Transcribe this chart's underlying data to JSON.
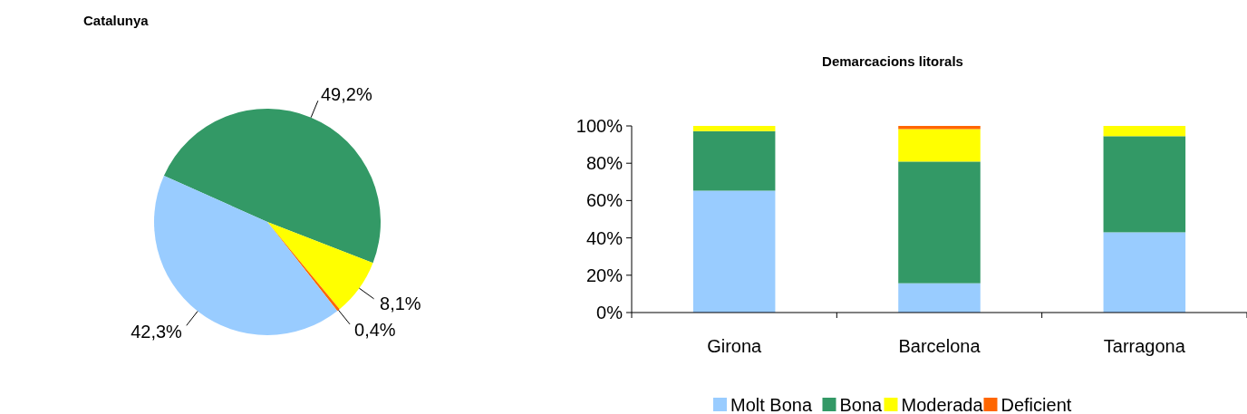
{
  "chart_data": [
    {
      "type": "pie",
      "title": "Catalunya",
      "values": [
        49.2,
        8.1,
        0.4,
        42.3
      ],
      "colors": [
        "#339966",
        "#ffff00",
        "#ff6600",
        "#99ccff"
      ],
      "value_labels": [
        "49,2%",
        "8,1%",
        "0,4%",
        "42,3%"
      ]
    },
    {
      "type": "bar",
      "title": "Demarcacions litorals",
      "categories": [
        "Girona",
        "Barcelona",
        "Tarragona"
      ],
      "stacked": true,
      "series": [
        {
          "name": "Molt Bona",
          "color": "#99ccff",
          "values": [
            65.3,
            15.7,
            43
          ]
        },
        {
          "name": "Bona",
          "color": "#339966",
          "values": [
            31.9,
            65.2,
            51.5
          ]
        },
        {
          "name": "Moderada",
          "color": "#ffff00",
          "values": [
            2.8,
            17.4,
            5.5
          ]
        },
        {
          "name": "Deficient",
          "color": "#ff6600",
          "values": [
            0,
            1.7,
            0
          ]
        }
      ],
      "ylim": [
        0,
        100
      ],
      "yticks": [
        {
          "value": 0,
          "label": "0%"
        },
        {
          "value": 20,
          "label": "20%"
        },
        {
          "value": 40,
          "label": "40%"
        },
        {
          "value": 60,
          "label": "60%"
        },
        {
          "value": 80,
          "label": "80%"
        },
        {
          "value": 100,
          "label": "100%"
        }
      ],
      "grid": false,
      "legend": "bottom"
    }
  ]
}
